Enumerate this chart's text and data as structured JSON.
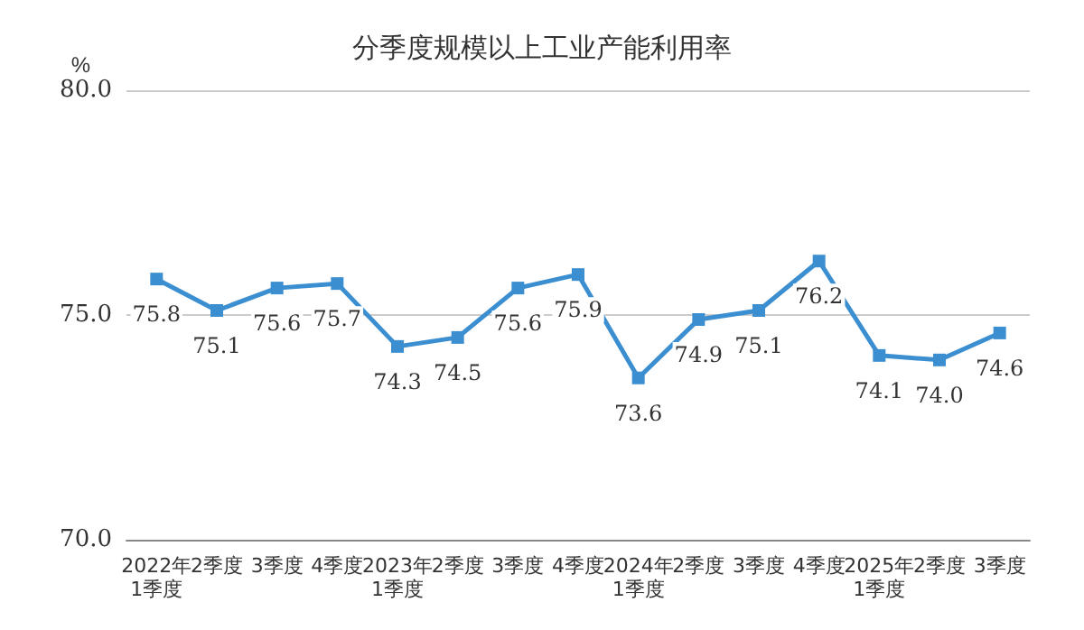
{
  "chart_data": {
    "type": "line",
    "title": "分季度规模以上工业产能利用率",
    "ylabel": "%",
    "categories": [
      "2022年\n1季度",
      "2季度",
      "3季度",
      "4季度",
      "2023年\n1季度",
      "2季度",
      "3季度",
      "4季度",
      "2024年\n1季度",
      "2季度",
      "3季度",
      "4季度",
      "2025年\n1季度",
      "2季度",
      "3季度"
    ],
    "series": [
      {
        "color": "#3b8fd1",
        "values": [
          75.8,
          75.1,
          75.6,
          75.7,
          74.3,
          74.5,
          75.6,
          75.9,
          73.6,
          74.9,
          75.1,
          76.2,
          74.1,
          74.0,
          74.6
        ],
        "value_labels": [
          "75.8",
          "75.1",
          "75.6",
          "75.7",
          "74.3",
          "74.5",
          "75.6",
          "75.9",
          "73.6",
          "74.9",
          "75.1",
          "76.2",
          "74.1",
          "74.0",
          "74.6"
        ]
      }
    ],
    "ylim": [
      70,
      80
    ],
    "yticks": [
      {
        "value": 70,
        "label": "70.0"
      },
      {
        "value": 75,
        "label": "75.0"
      },
      {
        "value": 80,
        "label": "80.0"
      }
    ],
    "grid": "y",
    "marker": "square",
    "line_style": "solid"
  }
}
